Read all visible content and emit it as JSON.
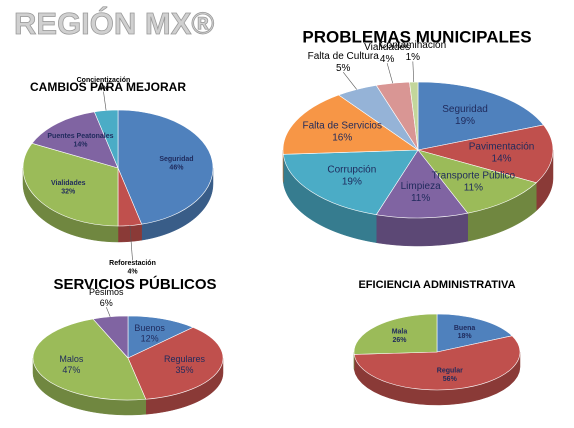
{
  "header": {
    "title": "REGIÓN MX®"
  },
  "chart_data": [
    {
      "type": "pie",
      "title": "CAMBIOS PARA MEJORAR",
      "categories": [
        "Seguridad",
        "Reforestación",
        "Vialidades",
        "Puentes Peatonales",
        "Concientización"
      ],
      "values": [
        46,
        4,
        32,
        14,
        4
      ],
      "value_labels": [
        "46%",
        "4%",
        "32%",
        "14%",
        "4%"
      ],
      "colors": [
        "#4f81bd",
        "#c0504d",
        "#9bbb59",
        "#8064a2",
        "#4bacc6"
      ]
    },
    {
      "type": "pie",
      "title": "PROBLEMAS MUNICIPALES",
      "categories": [
        "Seguridad",
        "Pavimentación",
        "Transporte Público",
        "Limpieza",
        "Corrupción",
        "Falta de Servicios",
        "Falta de Cultura",
        "Vialidades",
        "Contaminación"
      ],
      "values": [
        19,
        14,
        11,
        11,
        19,
        16,
        5,
        4,
        1
      ],
      "value_labels": [
        "19%",
        "14%",
        "11%",
        "11%",
        "19%",
        "16%",
        "5%",
        "4%",
        "1%"
      ],
      "colors": [
        "#4f81bd",
        "#c0504d",
        "#9bbb59",
        "#8064a2",
        "#4bacc6",
        "#f79646",
        "#95b3d7",
        "#d99694",
        "#c3d69b"
      ]
    },
    {
      "type": "pie",
      "title": "SERVICIOS PÚBLICOS",
      "categories": [
        "Buenos",
        "Regulares",
        "Malos",
        "Pésimos"
      ],
      "values": [
        12,
        35,
        47,
        6
      ],
      "value_labels": [
        "12%",
        "35%",
        "47%",
        "6%"
      ],
      "colors": [
        "#4f81bd",
        "#c0504d",
        "#9bbb59",
        "#8064a2"
      ]
    },
    {
      "type": "pie",
      "title": "EFICIENCIA ADMINISTRATIVA",
      "categories": [
        "Buena",
        "Regular",
        "Mala"
      ],
      "values": [
        18,
        56,
        26
      ],
      "value_labels": [
        "18%",
        "56%",
        "26%"
      ],
      "colors": [
        "#4f81bd",
        "#c0504d",
        "#9bbb59"
      ]
    }
  ]
}
